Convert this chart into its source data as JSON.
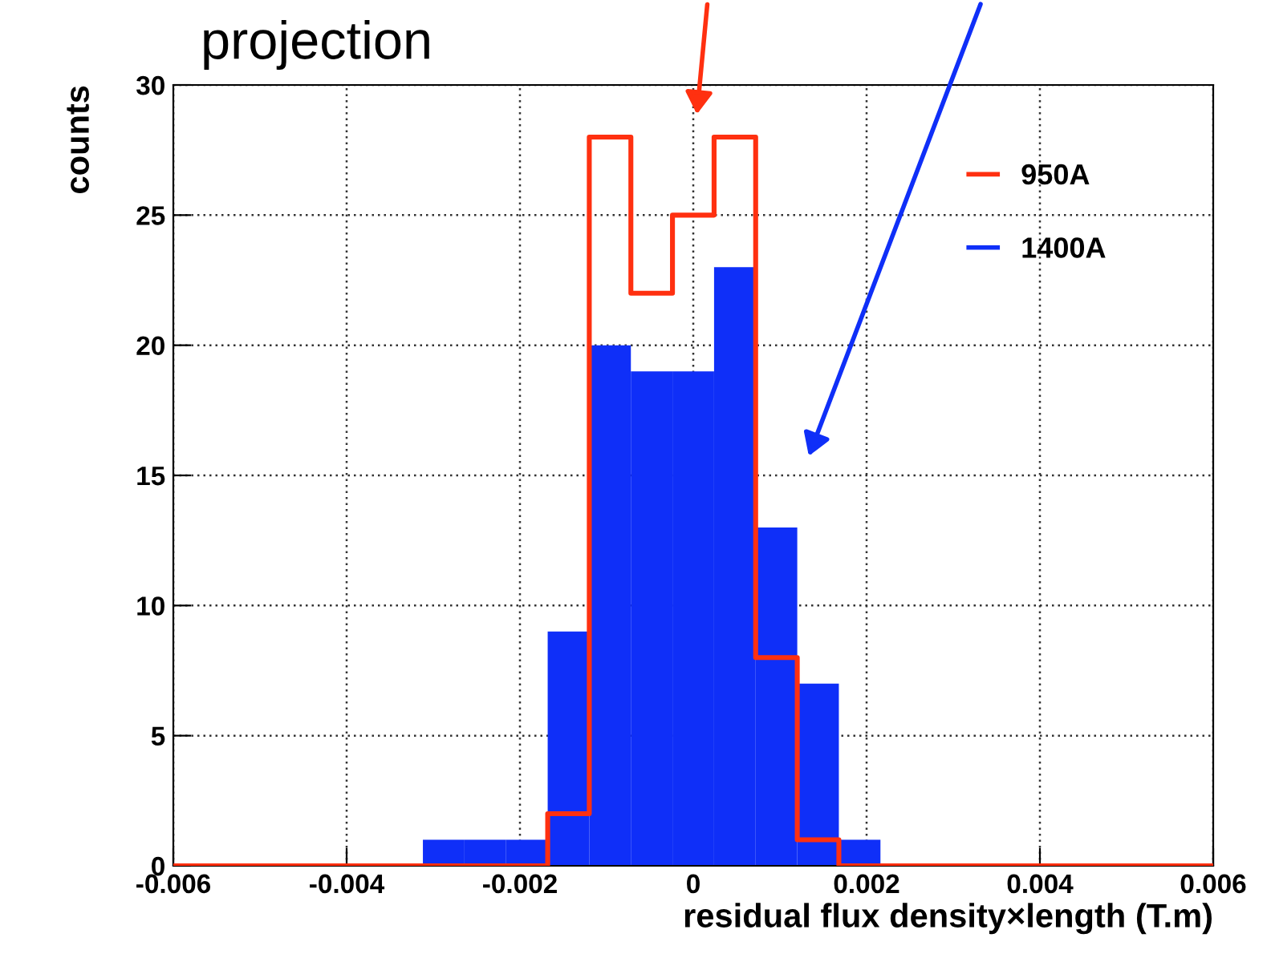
{
  "chart_data": {
    "type": "histogram",
    "title": "projection",
    "xlabel": "residual flux density×length (T.m)",
    "ylabel": "counts",
    "bins": [
      -0.006,
      -0.00552,
      -0.00504,
      -0.00456,
      -0.00408,
      -0.0036,
      -0.00312,
      -0.00264,
      -0.00216,
      -0.00168,
      -0.0012,
      -0.00072,
      -0.00024,
      0.00024,
      0.00072,
      0.0012,
      0.00168,
      0.00216,
      0.00264,
      0.00312,
      0.0036,
      0.00408,
      0.00456,
      0.00504,
      0.00552,
      0.006
    ],
    "series": [
      {
        "name": "950A",
        "color": "#ff3010",
        "type": "step",
        "x": [
          -0.006,
          -0.00552,
          -0.00504,
          -0.00456,
          -0.00408,
          -0.0036,
          -0.00312,
          -0.00264,
          -0.00216,
          -0.00168,
          -0.0012,
          -0.00072,
          -0.00024,
          0.00024,
          0.00072,
          0.0012,
          0.00168,
          0.00216,
          0.00264,
          0.00312,
          0.0036,
          0.00408,
          0.00456,
          0.00504,
          0.00552,
          0.006
        ],
        "values": [
          0,
          0,
          0,
          0,
          0,
          0,
          0,
          0,
          0,
          2,
          28,
          22,
          25,
          28,
          8,
          1,
          0,
          0,
          0,
          0,
          0,
          0,
          0,
          0,
          0,
          0
        ]
      },
      {
        "name": "1400A",
        "color": "#0f2ff8",
        "values": [
          0,
          0,
          0,
          0,
          0,
          0,
          1,
          1,
          1,
          9,
          20,
          19,
          19,
          23,
          13,
          7,
          1,
          0,
          0,
          0,
          0,
          0,
          0,
          0,
          0
        ]
      }
    ],
    "xlim": [
      -0.006,
      0.006
    ],
    "xticks": [
      -0.006,
      -0.004,
      -0.002,
      {
        "value": 0,
        "label": "0"
      },
      0.002,
      0.004,
      0.006
    ],
    "ylim": [
      0,
      30
    ],
    "yticks": [
      0,
      5,
      10,
      15,
      20,
      25,
      30
    ],
    "grid": true,
    "legend": "top right"
  }
}
